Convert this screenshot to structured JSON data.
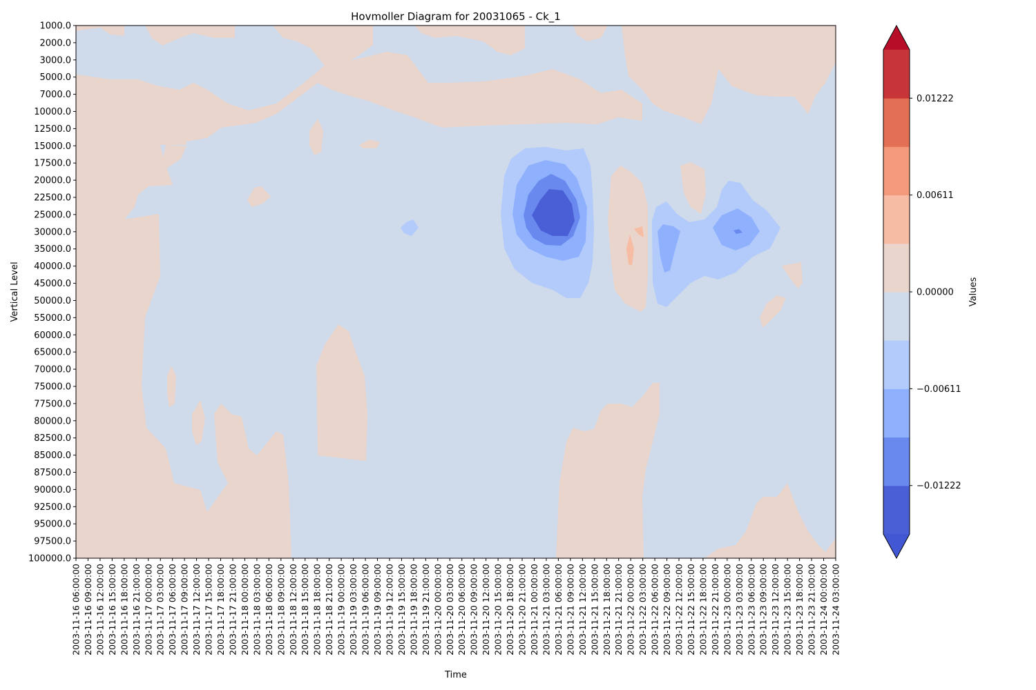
{
  "chart_data": {
    "type": "heatmap",
    "title": "Hovmoller Diagram for 20031065 - Ck_1",
    "xlabel": "Time",
    "ylabel": "Vertical Level",
    "x_ticks": [
      "2003-11-16 06:00:00",
      "2003-11-16 09:00:00",
      "2003-11-16 12:00:00",
      "2003-11-16 15:00:00",
      "2003-11-16 18:00:00",
      "2003-11-16 21:00:00",
      "2003-11-17 00:00:00",
      "2003-11-17 03:00:00",
      "2003-11-17 06:00:00",
      "2003-11-17 09:00:00",
      "2003-11-17 12:00:00",
      "2003-11-17 15:00:00",
      "2003-11-17 18:00:00",
      "2003-11-17 21:00:00",
      "2003-11-18 00:00:00",
      "2003-11-18 03:00:00",
      "2003-11-18 06:00:00",
      "2003-11-18 09:00:00",
      "2003-11-18 12:00:00",
      "2003-11-18 15:00:00",
      "2003-11-18 18:00:00",
      "2003-11-18 21:00:00",
      "2003-11-19 00:00:00",
      "2003-11-19 03:00:00",
      "2003-11-19 06:00:00",
      "2003-11-19 09:00:00",
      "2003-11-19 12:00:00",
      "2003-11-19 15:00:00",
      "2003-11-19 18:00:00",
      "2003-11-19 21:00:00",
      "2003-11-20 00:00:00",
      "2003-11-20 03:00:00",
      "2003-11-20 06:00:00",
      "2003-11-20 09:00:00",
      "2003-11-20 12:00:00",
      "2003-11-20 15:00:00",
      "2003-11-20 18:00:00",
      "2003-11-20 21:00:00",
      "2003-11-21 00:00:00",
      "2003-11-21 03:00:00",
      "2003-11-21 06:00:00",
      "2003-11-21 09:00:00",
      "2003-11-21 12:00:00",
      "2003-11-21 15:00:00",
      "2003-11-21 18:00:00",
      "2003-11-21 21:00:00",
      "2003-11-22 00:00:00",
      "2003-11-22 03:00:00",
      "2003-11-22 06:00:00",
      "2003-11-22 09:00:00",
      "2003-11-22 12:00:00",
      "2003-11-22 15:00:00",
      "2003-11-22 18:00:00",
      "2003-11-22 21:00:00",
      "2003-11-23 00:00:00",
      "2003-11-23 03:00:00",
      "2003-11-23 06:00:00",
      "2003-11-23 09:00:00",
      "2003-11-23 12:00:00",
      "2003-11-23 15:00:00",
      "2003-11-23 18:00:00",
      "2003-11-23 21:00:00",
      "2003-11-24 00:00:00",
      "2003-11-24 03:00:00"
    ],
    "y_ticks": [
      "1000.0",
      "2000.0",
      "3000.0",
      "5000.0",
      "7000.0",
      "10000.0",
      "12500.0",
      "15000.0",
      "17500.0",
      "20000.0",
      "22500.0",
      "25000.0",
      "30000.0",
      "35000.0",
      "40000.0",
      "45000.0",
      "50000.0",
      "55000.0",
      "60000.0",
      "65000.0",
      "70000.0",
      "75000.0",
      "77500.0",
      "80000.0",
      "82500.0",
      "85000.0",
      "87500.0",
      "90000.0",
      "92500.0",
      "95000.0",
      "97500.0",
      "100000.0"
    ],
    "colorbar": {
      "label": "Values",
      "ticks": [
        "0.01222",
        "0.00611",
        "0.00000",
        "−0.00611",
        "−0.01222"
      ],
      "tick_values": [
        0.01222,
        0.00611,
        0.0,
        -0.00611,
        -0.01222
      ],
      "levels": [
        -0.01833,
        -0.01528,
        -0.01222,
        -0.00917,
        -0.00611,
        -0.00306,
        0.0,
        0.00306,
        0.00611,
        0.00917,
        0.01222,
        0.01528,
        0.01833
      ],
      "extend": "both",
      "colors": [
        "#4257d4",
        "#4a5fd6",
        "#6a89ef",
        "#8fb0fd",
        "#b2cbfb",
        "#cfdaeb",
        "#ead5cc",
        "#f6bca4",
        "#f29a7b",
        "#e36f55",
        "#c83539",
        "#b70d28"
      ]
    },
    "background_level_color": "#cfdaeb",
    "regions": [
      {
        "name": "strong negative core",
        "center_time": "2003-11-21 06:00:00",
        "center_level": "25000.0",
        "min_value": -0.0153
      },
      {
        "name": "negative",
        "center_time": "2003-11-22 21:00:00",
        "center_level": "30000.0",
        "min_value": -0.0092
      },
      {
        "name": "positive column",
        "center_time": "2003-11-21 18:00:00",
        "center_level": "35000.0",
        "max_value": 0.0061
      },
      {
        "name": "positive lower band",
        "center_time": "2003-11-16 18:00:00",
        "center_level": "70000.0",
        "max_value": 0.003
      },
      {
        "name": "positive lower band",
        "center_time": "2003-11-21 12:00:00",
        "center_level": "90000.0",
        "max_value": 0.003
      },
      {
        "name": "positive upper band",
        "center_time": "2003-11-20 12:00:00",
        "center_level": "7000.0",
        "max_value": 0.003
      }
    ]
  }
}
